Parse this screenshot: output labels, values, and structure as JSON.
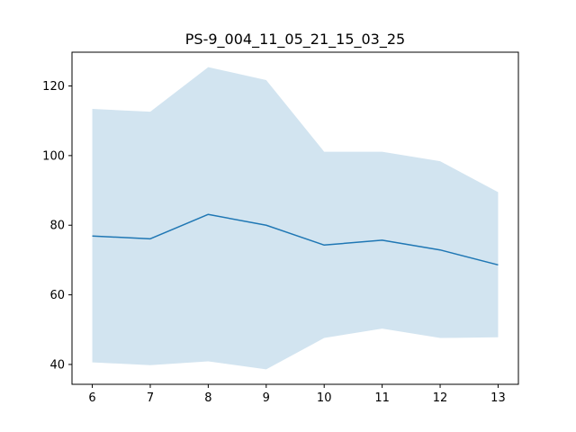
{
  "chart_data": {
    "type": "line",
    "title": "PS-9_004_11_05_21_15_03_25",
    "xlabel": "",
    "ylabel": "",
    "x": [
      6,
      7,
      8,
      9,
      10,
      11,
      12,
      13
    ],
    "series": [
      {
        "values": [
          76.9,
          76.1,
          83.1,
          80.0,
          74.3,
          75.7,
          72.9,
          68.6
        ],
        "upper": [
          113.4,
          112.6,
          125.4,
          121.7,
          101.1,
          101.1,
          98.4,
          89.5
        ],
        "lower": [
          40.6,
          39.8,
          40.9,
          38.6,
          47.6,
          50.3,
          47.6,
          47.8
        ],
        "color": "#1f77b4",
        "band_color": "#1f77b4"
      }
    ],
    "xticks": [
      "6",
      "7",
      "8",
      "9",
      "10",
      "11",
      "12",
      "13"
    ],
    "yticks": [
      "40",
      "60",
      "80",
      "100",
      "120"
    ],
    "ytick_values": [
      40,
      60,
      80,
      100,
      120
    ],
    "xlim": [
      5.65,
      13.35
    ],
    "ylim": [
      34.3,
      129.7
    ],
    "grid": false,
    "legend": "none"
  }
}
